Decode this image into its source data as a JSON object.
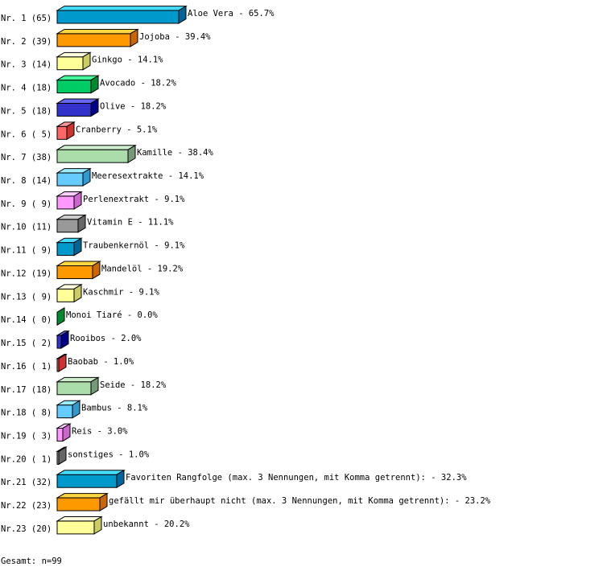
{
  "chart_data": {
    "type": "bar",
    "orientation": "horizontal",
    "style": "3d",
    "row_labels": [
      "Nr. 1 (65)",
      "Nr. 2 (39)",
      "Nr. 3 (14)",
      "Nr. 4 (18)",
      "Nr. 5 (18)",
      "Nr. 6 ( 5)",
      "Nr. 7 (38)",
      "Nr. 8 (14)",
      "Nr. 9 ( 9)",
      "Nr.10 (11)",
      "Nr.11 ( 9)",
      "Nr.12 (19)",
      "Nr.13 ( 9)",
      "Nr.14 ( 0)",
      "Nr.15 ( 2)",
      "Nr.16 ( 1)",
      "Nr.17 (18)",
      "Nr.18 ( 8)",
      "Nr.19 ( 3)",
      "Nr.20 ( 1)",
      "Nr.21 (32)",
      "Nr.22 (23)",
      "Nr.23 (20)"
    ],
    "categories": [
      "Aloe Vera",
      "Jojoba",
      "Ginkgo",
      "Avocado",
      "Olive",
      "Cranberry",
      "Kamille",
      "Meeresextrakte",
      "Perlenextrakt",
      "Vitamin E",
      "Traubenkernöl",
      "Mandelöl",
      "Kaschmir",
      "Monoi Tiaré",
      "Rooibos",
      "Baobab",
      "Seide",
      "Bambus",
      "Reis",
      "sonstiges",
      "Favoriten Rangfolge (max. 3 Nennungen, mit Komma getrennt):",
      "gefällt mir überhaupt nicht (max. 3 Nennungen, mit Komma getrennt):",
      "unbekannt"
    ],
    "counts": [
      65,
      39,
      14,
      18,
      18,
      5,
      38,
      14,
      9,
      11,
      9,
      19,
      9,
      0,
      2,
      1,
      18,
      8,
      3,
      1,
      32,
      23,
      20
    ],
    "value_labels": [
      "65.7%",
      "39.4%",
      "14.1%",
      "18.2%",
      "18.2%",
      "5.1%",
      "38.4%",
      "14.1%",
      "9.1%",
      "11.1%",
      "9.1%",
      "19.2%",
      "9.1%",
      "0.0%",
      "2.0%",
      "1.0%",
      "18.2%",
      "8.1%",
      "3.0%",
      "1.0%",
      "32.3%",
      "23.2%",
      "20.2%"
    ],
    "values": [
      65.7,
      39.4,
      14.1,
      18.2,
      18.2,
      5.1,
      38.4,
      14.1,
      9.1,
      11.1,
      9.1,
      19.2,
      9.1,
      0.0,
      2.0,
      1.0,
      18.2,
      8.1,
      3.0,
      1.0,
      32.3,
      23.2,
      20.2
    ],
    "unit": "%",
    "grid": false,
    "legend": "none",
    "palette": [
      {
        "front": "#0099cc",
        "top": "#44ddff",
        "side": "#006699"
      },
      {
        "front": "#ff9900",
        "top": "#ffd740",
        "side": "#cc6600"
      },
      {
        "front": "#ffff99",
        "top": "#ffffdd",
        "side": "#cccc66"
      },
      {
        "front": "#00cc66",
        "top": "#44ff99",
        "side": "#008833"
      },
      {
        "front": "#3333cc",
        "top": "#6666ee",
        "side": "#000088"
      },
      {
        "front": "#ff6666",
        "top": "#ff9999",
        "side": "#cc3333"
      },
      {
        "front": "#aaddaa",
        "top": "#cceecc",
        "side": "#779977"
      },
      {
        "front": "#66ccff",
        "top": "#99eeff",
        "side": "#3399cc"
      },
      {
        "front": "#ff99ff",
        "top": "#ffccff",
        "side": "#cc66cc"
      },
      {
        "front": "#999999",
        "top": "#cccccc",
        "side": "#666666"
      }
    ],
    "total_label": "Gesamt: n=99"
  }
}
